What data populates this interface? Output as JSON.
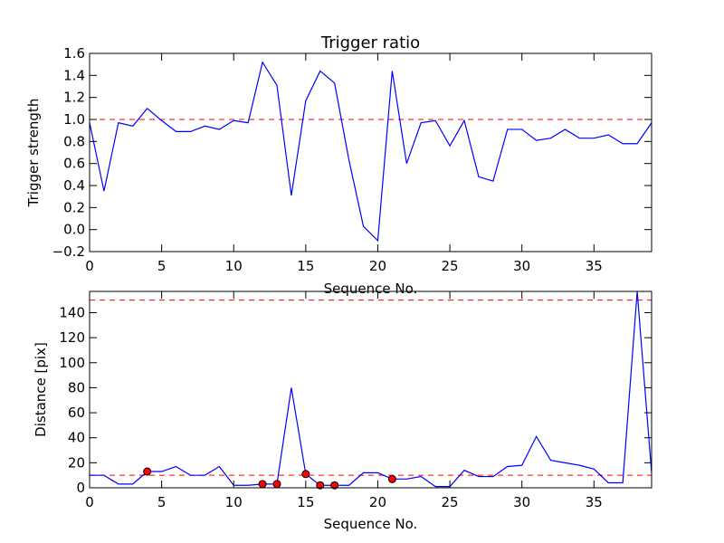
{
  "chart_data": [
    {
      "type": "line",
      "title": "Trigger ratio",
      "xlabel": "Sequence No.",
      "ylabel": "Trigger strength",
      "xlim": [
        0,
        39
      ],
      "ylim": [
        -0.2,
        1.6
      ],
      "xticks": [
        0,
        5,
        10,
        15,
        20,
        25,
        30,
        35
      ],
      "yticks": [
        -0.2,
        0.0,
        0.2,
        0.4,
        0.6,
        0.8,
        1.0,
        1.2,
        1.4,
        1.6
      ],
      "tick_labels_x": [
        "0",
        "5",
        "10",
        "15",
        "20",
        "25",
        "30",
        "35"
      ],
      "tick_labels_y": [
        "−0.2",
        "0.0",
        "0.2",
        "0.4",
        "0.6",
        "0.8",
        "1.0",
        "1.2",
        "1.4",
        "1.6"
      ],
      "grid": false,
      "series": [
        {
          "color": "#0000ff",
          "x": [
            0,
            1,
            2,
            3,
            4,
            5,
            6,
            7,
            8,
            9,
            10,
            11,
            12,
            13,
            14,
            15,
            16,
            17,
            18,
            19,
            20,
            21,
            22,
            23,
            24,
            25,
            26,
            27,
            28,
            29,
            30,
            31,
            32,
            33,
            34,
            35,
            36,
            37,
            38,
            39
          ],
          "values": [
            0.97,
            0.35,
            0.97,
            0.94,
            1.1,
            0.99,
            0.89,
            0.89,
            0.94,
            0.91,
            0.99,
            0.97,
            1.52,
            1.31,
            0.31,
            1.17,
            1.44,
            1.33,
            0.63,
            0.03,
            -0.1,
            1.44,
            0.6,
            0.97,
            0.99,
            0.76,
            0.99,
            0.48,
            0.44,
            0.91,
            0.91,
            0.81,
            0.83,
            0.91,
            0.83,
            0.83,
            0.86,
            0.78,
            0.78,
            0.97
          ]
        }
      ],
      "hlines": [
        {
          "y": 1.0,
          "color": "#ff0000",
          "style": "dashed"
        }
      ]
    },
    {
      "type": "line",
      "title": "",
      "xlabel": "Sequence No.",
      "ylabel": "Distance [pix]",
      "xlim": [
        0,
        39
      ],
      "ylim": [
        0,
        157
      ],
      "xticks": [
        0,
        5,
        10,
        15,
        20,
        25,
        30,
        35
      ],
      "yticks": [
        0,
        20,
        40,
        60,
        80,
        100,
        120,
        140
      ],
      "tick_labels_x": [
        "0",
        "5",
        "10",
        "15",
        "20",
        "25",
        "30",
        "35"
      ],
      "tick_labels_y": [
        "0",
        "20",
        "40",
        "60",
        "80",
        "100",
        "120",
        "140"
      ],
      "grid": false,
      "series": [
        {
          "color": "#0000ff",
          "x": [
            0,
            1,
            2,
            3,
            4,
            5,
            6,
            7,
            8,
            9,
            10,
            11,
            12,
            13,
            14,
            15,
            16,
            17,
            18,
            19,
            20,
            21,
            22,
            23,
            24,
            25,
            26,
            27,
            28,
            29,
            30,
            31,
            32,
            33,
            34,
            35,
            36,
            37,
            38,
            39
          ],
          "values": [
            10,
            10,
            3,
            3,
            13,
            13,
            17,
            10,
            10,
            17,
            2,
            2,
            3,
            3,
            80,
            11,
            2,
            2,
            2,
            12,
            12,
            7,
            7,
            9,
            1,
            1,
            14,
            9,
            9,
            17,
            18,
            41,
            22,
            20,
            18,
            15,
            4,
            4,
            157,
            12
          ]
        }
      ],
      "markers": {
        "color": "#ff0000",
        "x": [
          4,
          12,
          13,
          15,
          16,
          17,
          21
        ],
        "values": [
          13,
          3,
          3,
          11,
          2,
          2,
          7
        ]
      },
      "hlines": [
        {
          "y": 150,
          "color": "#ff0000",
          "style": "dashed"
        },
        {
          "y": 10,
          "color": "#ff0000",
          "style": "dashed"
        }
      ]
    }
  ]
}
